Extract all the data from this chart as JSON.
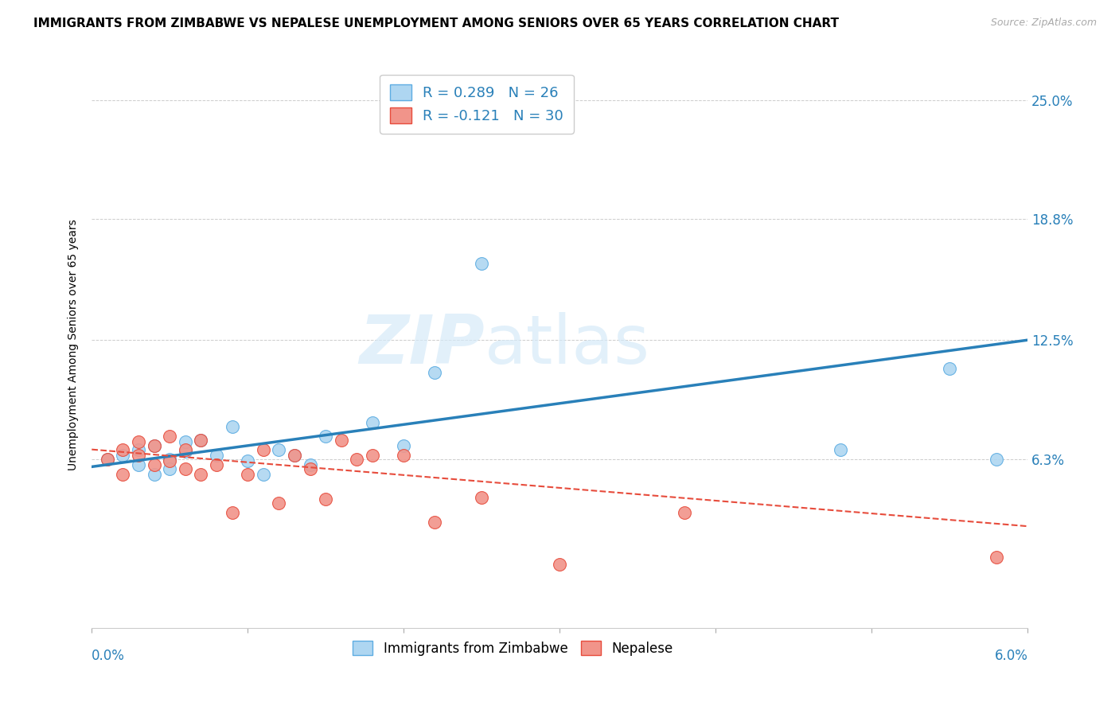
{
  "title": "IMMIGRANTS FROM ZIMBABWE VS NEPALESE UNEMPLOYMENT AMONG SENIORS OVER 65 YEARS CORRELATION CHART",
  "source": "Source: ZipAtlas.com",
  "ylabel": "Unemployment Among Seniors over 65 years",
  "ytick_labels": [
    "6.3%",
    "12.5%",
    "18.8%",
    "25.0%"
  ],
  "ytick_values": [
    0.063,
    0.125,
    0.188,
    0.25
  ],
  "xlim": [
    0.0,
    0.06
  ],
  "ylim": [
    -0.025,
    0.27
  ],
  "watermark_zip": "ZIP",
  "watermark_atlas": "atlas",
  "blue_series": {
    "color": "#aed6f1",
    "edge_color": "#5dade2",
    "line_color": "#2980b9",
    "line_style": "-",
    "line_width": 2.5,
    "x": [
      0.001,
      0.002,
      0.003,
      0.003,
      0.004,
      0.004,
      0.005,
      0.005,
      0.006,
      0.006,
      0.007,
      0.008,
      0.009,
      0.01,
      0.011,
      0.012,
      0.013,
      0.014,
      0.015,
      0.018,
      0.02,
      0.022,
      0.025,
      0.048,
      0.055,
      0.058
    ],
    "y": [
      0.063,
      0.065,
      0.06,
      0.068,
      0.055,
      0.07,
      0.063,
      0.058,
      0.067,
      0.072,
      0.073,
      0.065,
      0.08,
      0.062,
      0.055,
      0.068,
      0.065,
      0.06,
      0.075,
      0.082,
      0.07,
      0.108,
      0.165,
      0.068,
      0.11,
      0.063
    ]
  },
  "pink_series": {
    "color": "#f1948a",
    "edge_color": "#e74c3c",
    "line_color": "#e74c3c",
    "line_style": "--",
    "line_width": 1.5,
    "x": [
      0.001,
      0.002,
      0.002,
      0.003,
      0.003,
      0.004,
      0.004,
      0.005,
      0.005,
      0.006,
      0.006,
      0.007,
      0.007,
      0.008,
      0.009,
      0.01,
      0.011,
      0.012,
      0.013,
      0.014,
      0.015,
      0.016,
      0.017,
      0.018,
      0.02,
      0.022,
      0.025,
      0.03,
      0.038,
      0.058
    ],
    "y": [
      0.063,
      0.068,
      0.055,
      0.072,
      0.065,
      0.07,
      0.06,
      0.075,
      0.062,
      0.068,
      0.058,
      0.073,
      0.055,
      0.06,
      0.035,
      0.055,
      0.068,
      0.04,
      0.065,
      0.058,
      0.042,
      0.073,
      0.063,
      0.065,
      0.065,
      0.03,
      0.043,
      0.008,
      0.035,
      0.012
    ]
  },
  "background_color": "#ffffff",
  "grid_color": "#cccccc",
  "blue_R": "0.289",
  "blue_N": "26",
  "pink_R": "-0.121",
  "pink_N": "30",
  "legend_blue_label": "R = 0.289   N = 26",
  "legend_pink_label": "R = -0.121   N = 30",
  "bottom_legend_blue": "Immigrants from Zimbabwe",
  "bottom_legend_pink": "Nepalese"
}
